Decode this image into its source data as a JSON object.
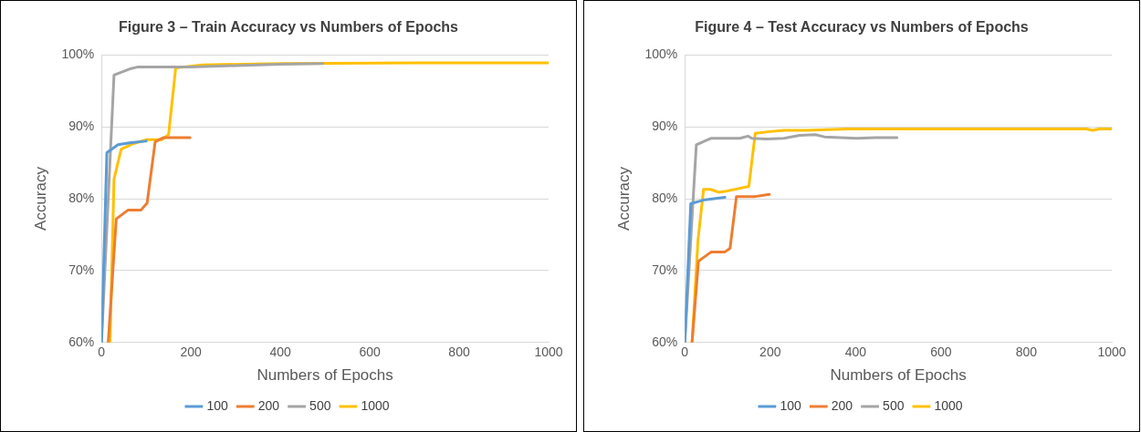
{
  "chart_data": [
    {
      "type": "line",
      "title": "Figure 3 – Train Accuracy vs Numbers of Epochs",
      "xlabel": "Numbers of Epochs",
      "ylabel": "Accuracy",
      "xlim": [
        0,
        1000
      ],
      "xticks": [
        0,
        200,
        400,
        600,
        800,
        1000
      ],
      "ylim": [
        60,
        100
      ],
      "yticks": [
        {
          "value": 60,
          "label": "60%"
        },
        {
          "value": 70,
          "label": "70%"
        },
        {
          "value": 80,
          "label": "80%"
        },
        {
          "value": 90,
          "label": "90%"
        },
        {
          "value": 100,
          "label": "100%"
        }
      ],
      "grid": "y",
      "legend": "bottom",
      "marker": "none",
      "line_style": "solid",
      "series": [
        {
          "name": "100",
          "color": "#5b9bd5",
          "x": [
            0,
            12,
            37,
            66,
            100
          ],
          "values": [
            60,
            86.4,
            87.5,
            87.8,
            88.0
          ]
        },
        {
          "name": "200",
          "color": "#ed7d31",
          "x": [
            15,
            33,
            59,
            88,
            102,
            120,
            139,
            198
          ],
          "values": [
            60,
            77.2,
            78.4,
            78.4,
            79.4,
            87.9,
            88.5,
            88.5
          ]
        },
        {
          "name": "500",
          "color": "#a5a5a5",
          "x": [
            0,
            28,
            66,
            80,
            200,
            300,
            400,
            495
          ],
          "values": [
            60,
            97.2,
            98.1,
            98.3,
            98.3,
            98.5,
            98.7,
            98.8
          ]
        },
        {
          "name": "1000",
          "color": "#ffc000",
          "x": [
            19,
            28,
            44,
            73,
            102,
            135,
            150,
            166,
            226,
            400,
            700,
            1000
          ],
          "values": [
            60,
            82.7,
            86.9,
            87.7,
            88.2,
            88.2,
            88.9,
            98.2,
            98.6,
            98.8,
            98.9,
            98.9
          ]
        }
      ]
    },
    {
      "type": "line",
      "title": "Figure 4 – Test Accuracy vs Numbers of Epochs",
      "xlabel": "Numbers of Epochs",
      "ylabel": "Accuracy",
      "xlim": [
        0,
        1000
      ],
      "xticks": [
        0,
        200,
        400,
        600,
        800,
        1000
      ],
      "ylim": [
        60,
        100
      ],
      "yticks": [
        {
          "value": 60,
          "label": "60%"
        },
        {
          "value": 70,
          "label": "70%"
        },
        {
          "value": 80,
          "label": "80%"
        },
        {
          "value": 90,
          "label": "90%"
        },
        {
          "value": 100,
          "label": "100%"
        }
      ],
      "grid": "y",
      "legend": "bottom",
      "marker": "none",
      "line_style": "solid",
      "series": [
        {
          "name": "100",
          "color": "#5b9bd5",
          "x": [
            0,
            14,
            43,
            94
          ],
          "values": [
            60,
            79.3,
            79.8,
            80.2
          ]
        },
        {
          "name": "200",
          "color": "#ed7d31",
          "x": [
            17,
            32,
            62,
            94,
            106,
            121,
            165,
            198
          ],
          "values": [
            60,
            71.3,
            72.6,
            72.6,
            73.1,
            80.3,
            80.3,
            80.6
          ]
        },
        {
          "name": "500",
          "color": "#a5a5a5",
          "x": [
            0,
            27,
            62,
            129,
            148,
            157,
            192,
            232,
            269,
            306,
            327,
            403,
            447,
            497
          ],
          "values": [
            60,
            87.5,
            88.4,
            88.4,
            88.7,
            88.4,
            88.3,
            88.4,
            88.8,
            88.9,
            88.6,
            88.4,
            88.5,
            88.5
          ]
        },
        {
          "name": "1000",
          "color": "#ffc000",
          "x": [
            17,
            31,
            44,
            60,
            79,
            94,
            150,
            165,
            195,
            232,
            284,
            381,
            508,
            940,
            955,
            970,
            1000
          ],
          "values": [
            60,
            74.3,
            81.3,
            81.3,
            80.9,
            81.0,
            81.7,
            89.1,
            89.3,
            89.5,
            89.5,
            89.7,
            89.7,
            89.7,
            89.5,
            89.7,
            89.7
          ]
        }
      ]
    }
  ]
}
